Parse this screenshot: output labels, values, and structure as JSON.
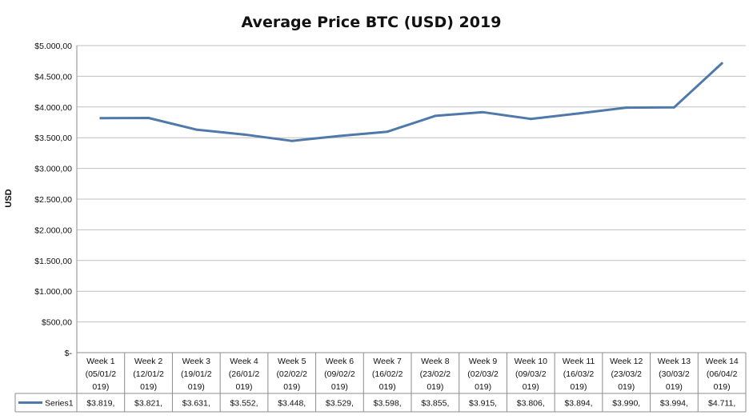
{
  "chart_data": {
    "type": "line",
    "title": "Average Price BTC (USD) 2019",
    "ylabel": "USD",
    "xlabel": "",
    "ylim": [
      0,
      5000
    ],
    "ytick_labels": [
      "$-",
      "$500,00",
      "$1.000,00",
      "$1.500,00",
      "$2.000,00",
      "$2.500,00",
      "$3.000,00",
      "$3.500,00",
      "$4.000,00",
      "$4.500,00",
      "$5.000,00"
    ],
    "categories": [
      [
        "Week 1",
        "(05/01/2",
        "019)"
      ],
      [
        "Week 2",
        "(12/01/2",
        "019)"
      ],
      [
        "Week 3",
        "(19/01/2",
        "019)"
      ],
      [
        "Week 4",
        "(26/01/2",
        "019)"
      ],
      [
        "Week 5",
        "(02/02/2",
        "019)"
      ],
      [
        "Week 6",
        "(09/02/2",
        "019)"
      ],
      [
        "Week 7",
        "(16/02/2",
        "019)"
      ],
      [
        "Week 8",
        "(23/02/2",
        "019)"
      ],
      [
        "Week 9",
        "(02/03/2",
        "019)"
      ],
      [
        "Week 10",
        "(09/03/2",
        "019)"
      ],
      [
        "Week 11",
        "(16/03/2",
        "019)"
      ],
      [
        "Week 12",
        "(23/03/2",
        "019)"
      ],
      [
        "Week 13",
        "(30/03/2",
        "019)"
      ],
      [
        "Week 14",
        "(06/04/2",
        "019)"
      ]
    ],
    "series": [
      {
        "name": "Series1",
        "color": "#4f79aa",
        "values": [
          3819,
          3821,
          3631,
          3552,
          3448,
          3529,
          3598,
          3855,
          3915,
          3806,
          3894,
          3990,
          3994,
          4711
        ],
        "value_labels": [
          "$3.819,",
          "$3.821,",
          "$3.631,",
          "$3.552,",
          "$3.448,",
          "$3.529,",
          "$3.598,",
          "$3.855,",
          "$3.915,",
          "$3.806,",
          "$3.894,",
          "$3.990,",
          "$3.994,",
          "$4.711,"
        ]
      }
    ],
    "grid": true,
    "legend": "data-table"
  }
}
